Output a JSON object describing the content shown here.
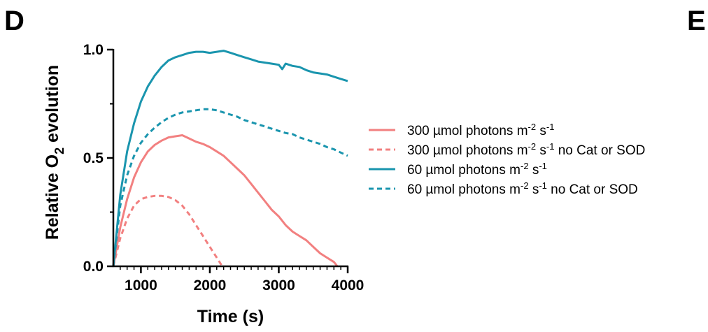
{
  "panels": {
    "left": "D",
    "right": "E"
  },
  "chart_data": {
    "type": "line",
    "xlabel": "Time (s)",
    "ylabel_parts": [
      "Relative O",
      "2",
      " evolution"
    ],
    "xlim": [
      600,
      4000
    ],
    "ylim": [
      0,
      1.0
    ],
    "xticks": [
      1000,
      2000,
      3000,
      4000
    ],
    "xtick_labels": [
      "1000",
      "2000",
      "3000",
      "4000"
    ],
    "yticks": [
      0.0,
      0.5,
      1.0
    ],
    "ytick_labels": [
      "0.0",
      "0.5",
      "1.0"
    ],
    "grid": false,
    "legend_position": "right",
    "series": [
      {
        "name": "300 µmol photons m-2 s-1",
        "label_parts": [
          {
            "t": "300 µmol photons m"
          },
          {
            "t": "-2",
            "sup": true
          },
          {
            "t": " s"
          },
          {
            "t": "-1",
            "sup": true
          }
        ],
        "color": "#F28080",
        "style": "solid",
        "x": [
          600,
          700,
          800,
          900,
          1000,
          1100,
          1200,
          1300,
          1400,
          1500,
          1600,
          1700,
          1800,
          1900,
          2000,
          2100,
          2200,
          2300,
          2400,
          2500,
          2600,
          2700,
          2800,
          2900,
          3000,
          3100,
          3200,
          3300,
          3400,
          3500,
          3600,
          3700,
          3800,
          3850
        ],
        "y": [
          0.0,
          0.18,
          0.31,
          0.41,
          0.48,
          0.53,
          0.56,
          0.58,
          0.595,
          0.6,
          0.605,
          0.59,
          0.575,
          0.565,
          0.55,
          0.53,
          0.51,
          0.48,
          0.45,
          0.42,
          0.38,
          0.34,
          0.3,
          0.26,
          0.23,
          0.19,
          0.16,
          0.14,
          0.12,
          0.09,
          0.06,
          0.04,
          0.02,
          0.0
        ]
      },
      {
        "name": "300 µmol photons m-2 s-1 no Cat or SOD",
        "label_parts": [
          {
            "t": "300 µmol photons m"
          },
          {
            "t": "-2",
            "sup": true
          },
          {
            "t": " s"
          },
          {
            "t": "-1",
            "sup": true
          },
          {
            "t": " no Cat or SOD"
          }
        ],
        "color": "#F28080",
        "style": "dashed",
        "x": [
          600,
          700,
          800,
          900,
          1000,
          1100,
          1200,
          1300,
          1400,
          1500,
          1600,
          1700,
          1800,
          1900,
          2000,
          2100,
          2180
        ],
        "y": [
          0.0,
          0.13,
          0.22,
          0.28,
          0.31,
          0.32,
          0.325,
          0.325,
          0.32,
          0.305,
          0.28,
          0.24,
          0.19,
          0.14,
          0.09,
          0.04,
          0.0
        ]
      },
      {
        "name": "60 µmol photons m-2 s-1",
        "label_parts": [
          {
            "t": "60 µmol photons m"
          },
          {
            "t": "-2",
            "sup": true
          },
          {
            "t": " s"
          },
          {
            "t": "-1",
            "sup": true
          }
        ],
        "color": "#1A95AE",
        "style": "solid",
        "x": [
          600,
          700,
          800,
          900,
          1000,
          1100,
          1200,
          1300,
          1400,
          1500,
          1600,
          1700,
          1800,
          1900,
          2000,
          2100,
          2200,
          2300,
          2400,
          2500,
          2600,
          2700,
          2800,
          2900,
          3000,
          3050,
          3100,
          3200,
          3300,
          3400,
          3500,
          3600,
          3700,
          3800,
          3900,
          4000
        ],
        "y": [
          0.0,
          0.33,
          0.53,
          0.66,
          0.76,
          0.83,
          0.88,
          0.92,
          0.95,
          0.965,
          0.975,
          0.985,
          0.99,
          0.99,
          0.985,
          0.99,
          0.995,
          0.985,
          0.975,
          0.965,
          0.955,
          0.945,
          0.94,
          0.935,
          0.93,
          0.91,
          0.935,
          0.925,
          0.92,
          0.905,
          0.895,
          0.89,
          0.885,
          0.875,
          0.865,
          0.855
        ]
      },
      {
        "name": "60 µmol photons m-2 s-1 no Cat or SOD",
        "label_parts": [
          {
            "t": "60 µmol photons m"
          },
          {
            "t": "-2",
            "sup": true
          },
          {
            "t": " s"
          },
          {
            "t": "-1",
            "sup": true
          },
          {
            "t": " no Cat or SOD"
          }
        ],
        "color": "#1A95AE",
        "style": "dashed",
        "x": [
          600,
          700,
          800,
          900,
          1000,
          1100,
          1200,
          1300,
          1400,
          1500,
          1600,
          1700,
          1800,
          1900,
          2000,
          2100,
          2200,
          2300,
          2400,
          2500,
          2600,
          2700,
          2800,
          2900,
          3000,
          3100,
          3200,
          3300,
          3400,
          3500,
          3600,
          3700,
          3800,
          3900,
          4000
        ],
        "y": [
          0.0,
          0.28,
          0.42,
          0.51,
          0.57,
          0.61,
          0.64,
          0.665,
          0.685,
          0.7,
          0.71,
          0.715,
          0.72,
          0.725,
          0.725,
          0.72,
          0.71,
          0.7,
          0.69,
          0.675,
          0.665,
          0.655,
          0.645,
          0.635,
          0.625,
          0.615,
          0.61,
          0.595,
          0.585,
          0.575,
          0.565,
          0.55,
          0.54,
          0.525,
          0.51
        ]
      }
    ]
  }
}
